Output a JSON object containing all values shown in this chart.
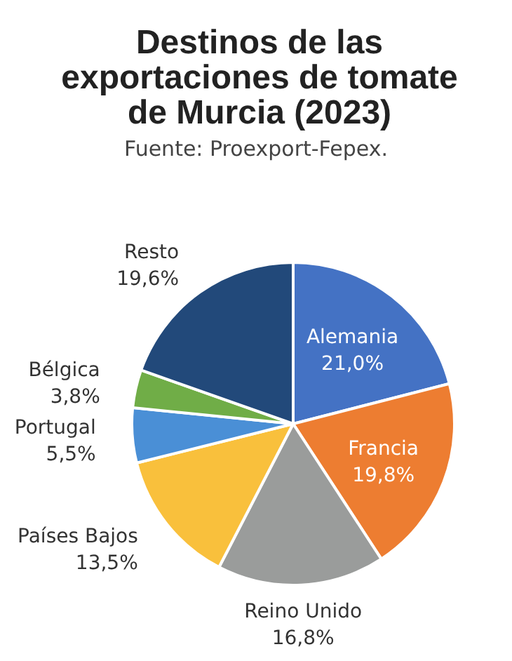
{
  "chart_data": {
    "type": "pie",
    "title": "Destinos de las exportaciones de tomate de Murcia (2023)",
    "subtitle": "Fuente: Proexport-Fepex.",
    "categories": [
      "Alemania",
      "Francia",
      "Reino Unido",
      "Países Bajos",
      "Portugal",
      "Bélgica",
      "Resto"
    ],
    "values": [
      21.0,
      19.8,
      16.8,
      13.5,
      5.5,
      3.8,
      19.6
    ],
    "value_labels": [
      "21,0%",
      "19,8%",
      "16,8%",
      "13,5%",
      "5,5%",
      "3,8%",
      "19,6%"
    ],
    "colors": [
      "#4472c4",
      "#ed7d31",
      "#9a9c9b",
      "#f9c03c",
      "#4a8fd6",
      "#70ad47",
      "#22497a"
    ],
    "legend": false
  }
}
